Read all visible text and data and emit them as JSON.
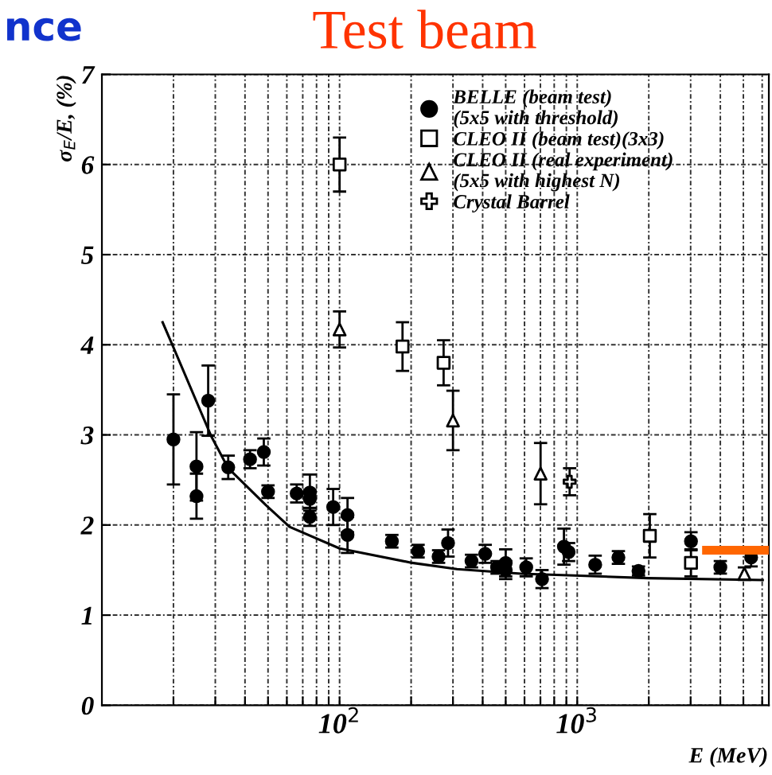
{
  "chart_data": {
    "type": "scatter",
    "title": "Test beam",
    "xlabel": "E (MeV)",
    "ylabel": "σ$_{E}$/E, (%)",
    "annotations": [
      "nce"
    ],
    "log": "x",
    "xlim": [
      10,
      6400
    ],
    "ylim": [
      0,
      7
    ],
    "xticks": [
      {
        "value": 20,
        "label": null
      },
      {
        "value": 30,
        "label": null
      },
      {
        "value": 40,
        "label": null
      },
      {
        "value": 50,
        "label": null
      },
      {
        "value": 60,
        "label": null
      },
      {
        "value": 70,
        "label": null
      },
      {
        "value": 80,
        "label": null
      },
      {
        "value": 90,
        "label": null
      },
      {
        "value": 100,
        "label": "10$^{2}$"
      },
      {
        "value": 200,
        "label": null
      },
      {
        "value": 300,
        "label": null
      },
      {
        "value": 400,
        "label": null
      },
      {
        "value": 500,
        "label": null
      },
      {
        "value": 600,
        "label": null
      },
      {
        "value": 700,
        "label": null
      },
      {
        "value": 800,
        "label": null
      },
      {
        "value": 900,
        "label": null
      },
      {
        "value": 1000,
        "label": "10$^{3}$"
      },
      {
        "value": 2000,
        "label": null
      },
      {
        "value": 3000,
        "label": null
      },
      {
        "value": 4000,
        "label": null
      },
      {
        "value": 5000,
        "label": null
      },
      {
        "value": 6000,
        "label": null
      }
    ],
    "yticks": [
      0,
      1,
      2,
      3,
      4,
      5,
      6,
      7
    ],
    "grid": true,
    "legend": "top right",
    "series": [
      {
        "name": "BELLE (beam test)\n(5x5 with threshold)",
        "marker": "circle",
        "color": "#000000",
        "x": [
          20,
          25,
          25,
          28,
          34,
          42,
          48,
          50,
          66,
          75,
          75,
          75,
          94,
          108,
          108,
          166,
          214,
          261,
          286,
          359,
          410,
          460,
          500,
          500,
          610,
          711,
          879,
          920,
          1190,
          1490,
          1810,
          3010,
          4000,
          5390
        ],
        "values": [
          2.95,
          2.65,
          2.32,
          3.38,
          2.64,
          2.73,
          2.81,
          2.37,
          2.35,
          2.36,
          2.29,
          2.09,
          2.2,
          2.11,
          1.89,
          1.82,
          1.71,
          1.65,
          1.8,
          1.6,
          1.68,
          1.53,
          1.58,
          1.5,
          1.53,
          1.4,
          1.76,
          1.7,
          1.56,
          1.64,
          1.49,
          1.82,
          1.53,
          1.64
        ],
        "errors": [
          0.5,
          0.38,
          0.25,
          0.39,
          0.13,
          0.1,
          0.15,
          0.07,
          0.1,
          0.2,
          0.1,
          0.1,
          0.2,
          0.19,
          0.2,
          0.07,
          0.07,
          0.07,
          0.15,
          0.07,
          0.1,
          0.07,
          0.15,
          0.1,
          0.1,
          0.1,
          0.2,
          0.1,
          0.1,
          0.07,
          0.05,
          0.1,
          0.07,
          0.1
        ]
      },
      {
        "name": "CLEO II (beam test)(3x3)",
        "marker": "square",
        "color": "#000000",
        "x": [
          100,
          184,
          274,
          2020,
          3010
        ],
        "values": [
          6.0,
          3.98,
          3.8,
          1.88,
          1.58
        ],
        "errors": [
          0.3,
          0.27,
          0.25,
          0.24,
          0.15
        ]
      },
      {
        "name": "CLEO II (real experiment)\n(5x5 with highest N)",
        "marker": "triangle",
        "color": "#000000",
        "x": [
          100,
          300,
          701,
          5050
        ],
        "values": [
          4.17,
          3.16,
          2.57,
          1.46
        ],
        "errors": [
          0.2,
          0.33,
          0.34,
          0.07
        ]
      },
      {
        "name": "Crystal Barrel",
        "marker": "cross",
        "color": "#000000",
        "x": [
          929
        ],
        "values": [
          2.48
        ],
        "errors": [
          0.15
        ]
      },
      {
        "type": "line",
        "color": "#000000",
        "x": [
          18,
          20,
          28.9,
          34,
          49,
          61.6,
          100,
          202,
          312,
          580,
          970,
          1990,
          6030
        ],
        "values": [
          4.25,
          3.97,
          2.98,
          2.63,
          2.22,
          1.98,
          1.74,
          1.58,
          1.51,
          1.46,
          1.44,
          1.41,
          1.39
        ]
      },
      {
        "type": "line",
        "color": "#ff6600",
        "values": [
          1.72,
          1.72
        ],
        "x": [
          3500,
          6400
        ]
      }
    ]
  }
}
